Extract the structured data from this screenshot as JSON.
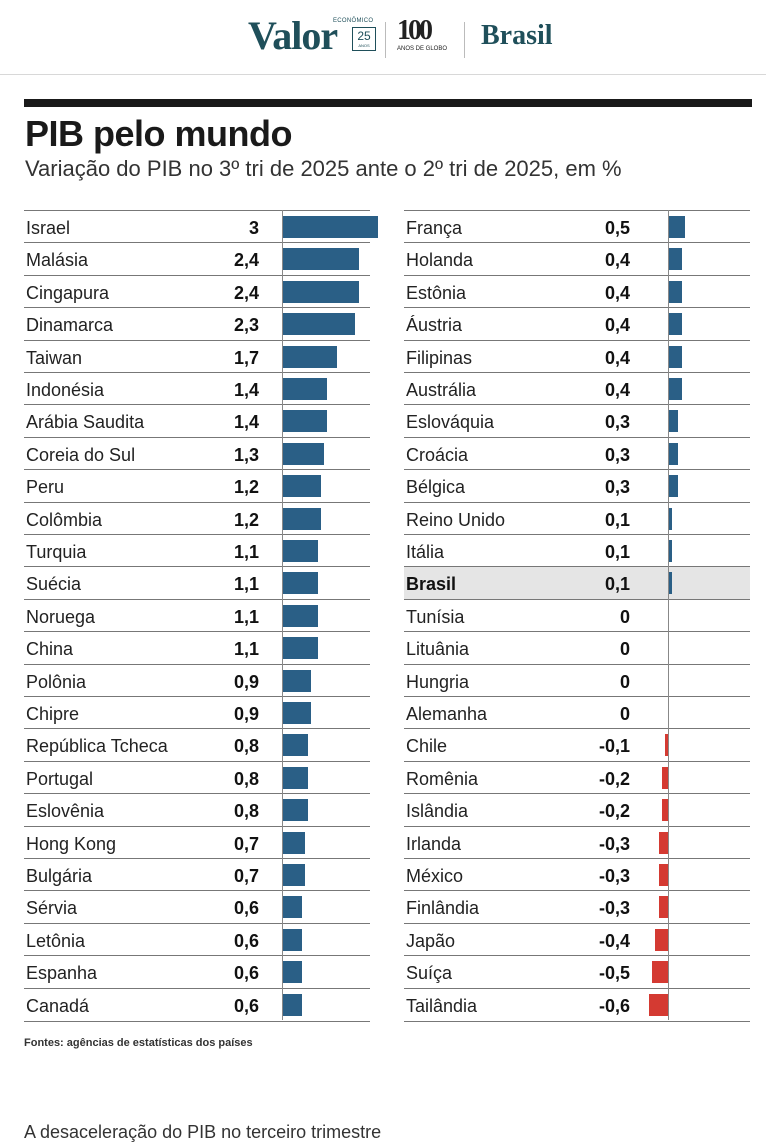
{
  "header": {
    "brand": "Valor",
    "brand_small": "ECONÔMICO",
    "anniversary": "25",
    "anniversary_sub": "ANOS",
    "partner": "100",
    "partner_sub": "ANOS DE GLOBO",
    "section": "Brasil"
  },
  "chart_data": {
    "type": "bar",
    "orientation": "horizontal",
    "title": "PIB pelo mundo",
    "subtitle": "Variação do PIB no 3º tri de 2025 ante o 2º tri de 2025, em %",
    "colors": {
      "positive": "#2a5f86",
      "negative": "#d43a32",
      "highlight_row": "#e5e5e5"
    },
    "highlight": "Brasil",
    "columns": [
      {
        "categories": [
          "Israel",
          "Malásia",
          "Cingapura",
          "Dinamarca",
          "Taiwan",
          "Indonésia",
          "Arábia Saudita",
          "Coreia do Sul",
          "Peru",
          "Colômbia",
          "Turquia",
          "Suécia",
          "Noruega",
          "China",
          "Polônia",
          "Chipre",
          "República Tcheca",
          "Portugal",
          "Eslovênia",
          "Hong Kong",
          "Bulgária",
          "Sérvia",
          "Letônia",
          "Espanha",
          "Canadá"
        ],
        "values": [
          3,
          2.4,
          2.4,
          2.3,
          1.7,
          1.4,
          1.4,
          1.3,
          1.2,
          1.2,
          1.1,
          1.1,
          1.1,
          1.1,
          0.9,
          0.9,
          0.8,
          0.8,
          0.8,
          0.7,
          0.7,
          0.6,
          0.6,
          0.6,
          0.6
        ],
        "labels": [
          "3",
          "2,4",
          "2,4",
          "2,3",
          "1,7",
          "1,4",
          "1,4",
          "1,3",
          "1,2",
          "1,2",
          "1,1",
          "1,1",
          "1,1",
          "1,1",
          "0,9",
          "0,9",
          "0,8",
          "0,8",
          "0,8",
          "0,7",
          "0,7",
          "0,6",
          "0,6",
          "0,6",
          "0,6"
        ]
      },
      {
        "categories": [
          "França",
          "Holanda",
          "Estônia",
          "Áustria",
          "Filipinas",
          "Austrália",
          "Eslováquia",
          "Croácia",
          "Bélgica",
          "Reino Unido",
          "Itália",
          "Brasil",
          "Tunísia",
          "Lituânia",
          "Hungria",
          "Alemanha",
          "Chile",
          "Romênia",
          "Islândia",
          "Irlanda",
          "México",
          "Finlândia",
          "Japão",
          "Suíça",
          "Tailândia"
        ],
        "values": [
          0.5,
          0.4,
          0.4,
          0.4,
          0.4,
          0.4,
          0.3,
          0.3,
          0.3,
          0.1,
          0.1,
          0.1,
          0,
          0,
          0,
          0,
          -0.1,
          -0.2,
          -0.2,
          -0.3,
          -0.3,
          -0.3,
          -0.4,
          -0.5,
          -0.6
        ],
        "labels": [
          "0,5",
          "0,4",
          "0,4",
          "0,4",
          "0,4",
          "0,4",
          "0,3",
          "0,3",
          "0,3",
          "0,1",
          "0,1",
          "0,1",
          "0",
          "0",
          "0",
          "0",
          "-0,1",
          "-0,2",
          "-0,2",
          "-0,3",
          "-0,3",
          "-0,3",
          "-0,4",
          "-0,5",
          "-0,6"
        ]
      }
    ]
  },
  "source": "Fontes: agências de estatísticas dos países",
  "caption": "A desaceleração do PIB no terceiro trimestre"
}
